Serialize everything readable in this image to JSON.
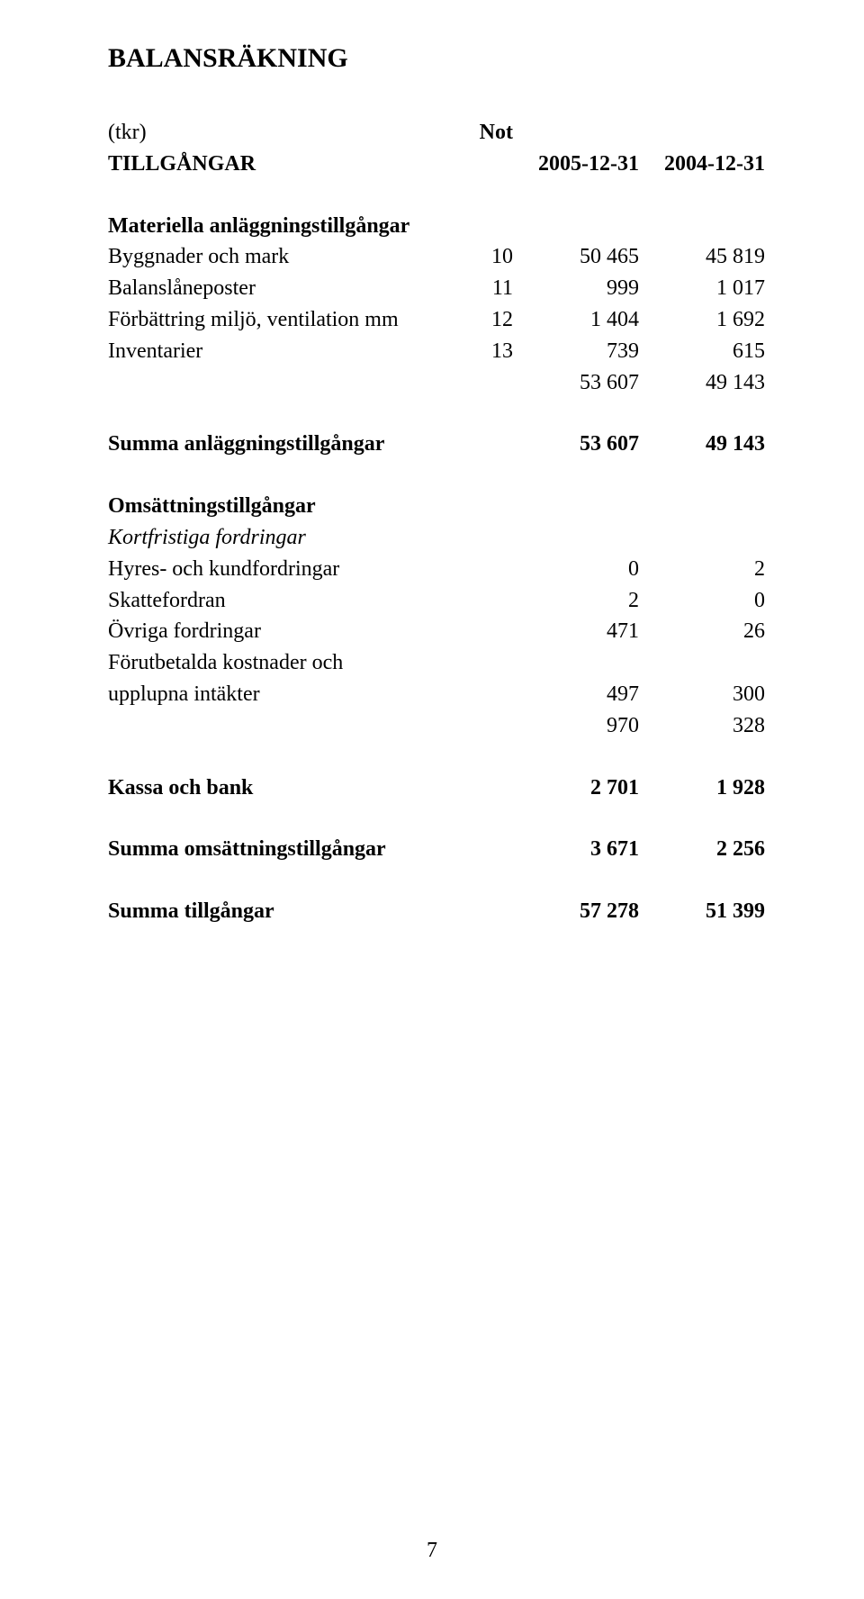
{
  "title": "BALANSRÄKNING",
  "header": {
    "unit": "(tkr)",
    "not": "Not",
    "section": "TILLGÅNGAR",
    "col_a": "2005-12-31",
    "col_b": "2004-12-31"
  },
  "mat": {
    "heading": "Materiella anläggningstillgångar",
    "rows": [
      {
        "label": "Byggnader och mark",
        "not": "10",
        "a": "50 465",
        "b": "45 819"
      },
      {
        "label": "Balanslåneposter",
        "not": "11",
        "a": "999",
        "b": "1 017"
      },
      {
        "label": "Förbättring miljö, ventilation mm",
        "not": "12",
        "a": "1 404",
        "b": "1 692"
      },
      {
        "label": "Inventarier",
        "not": "13",
        "a": "739",
        "b": "615"
      }
    ],
    "subtotal": {
      "a": "53 607",
      "b": "49 143"
    },
    "total_label": "Summa anläggningstillgångar",
    "total": {
      "a": "53 607",
      "b": "49 143"
    }
  },
  "oms": {
    "heading": "Omsättningstillgångar",
    "sub_italic": "Kortfristiga fordringar",
    "rows": [
      {
        "label": "Hyres- och kundfordringar",
        "a": "0",
        "b": "2"
      },
      {
        "label": "Skattefordran",
        "a": "2",
        "b": "0"
      },
      {
        "label": "Övriga fordringar",
        "a": "471",
        "b": "26"
      }
    ],
    "forut_l1": "Förutbetalda kostnader och",
    "forut_l2": "upplupna intäkter",
    "forut": {
      "a": "497",
      "b": "300"
    },
    "subtotal": {
      "a": "970",
      "b": "328"
    },
    "kassa_label": "Kassa och bank",
    "kassa": {
      "a": "2 701",
      "b": "1 928"
    },
    "sum_oms_label": "Summa omsättningstillgångar",
    "sum_oms": {
      "a": "3 671",
      "b": "2 256"
    },
    "sum_tot_label": "Summa tillgångar",
    "sum_tot": {
      "a": "57 278",
      "b": "51 399"
    }
  },
  "page_number": "7"
}
